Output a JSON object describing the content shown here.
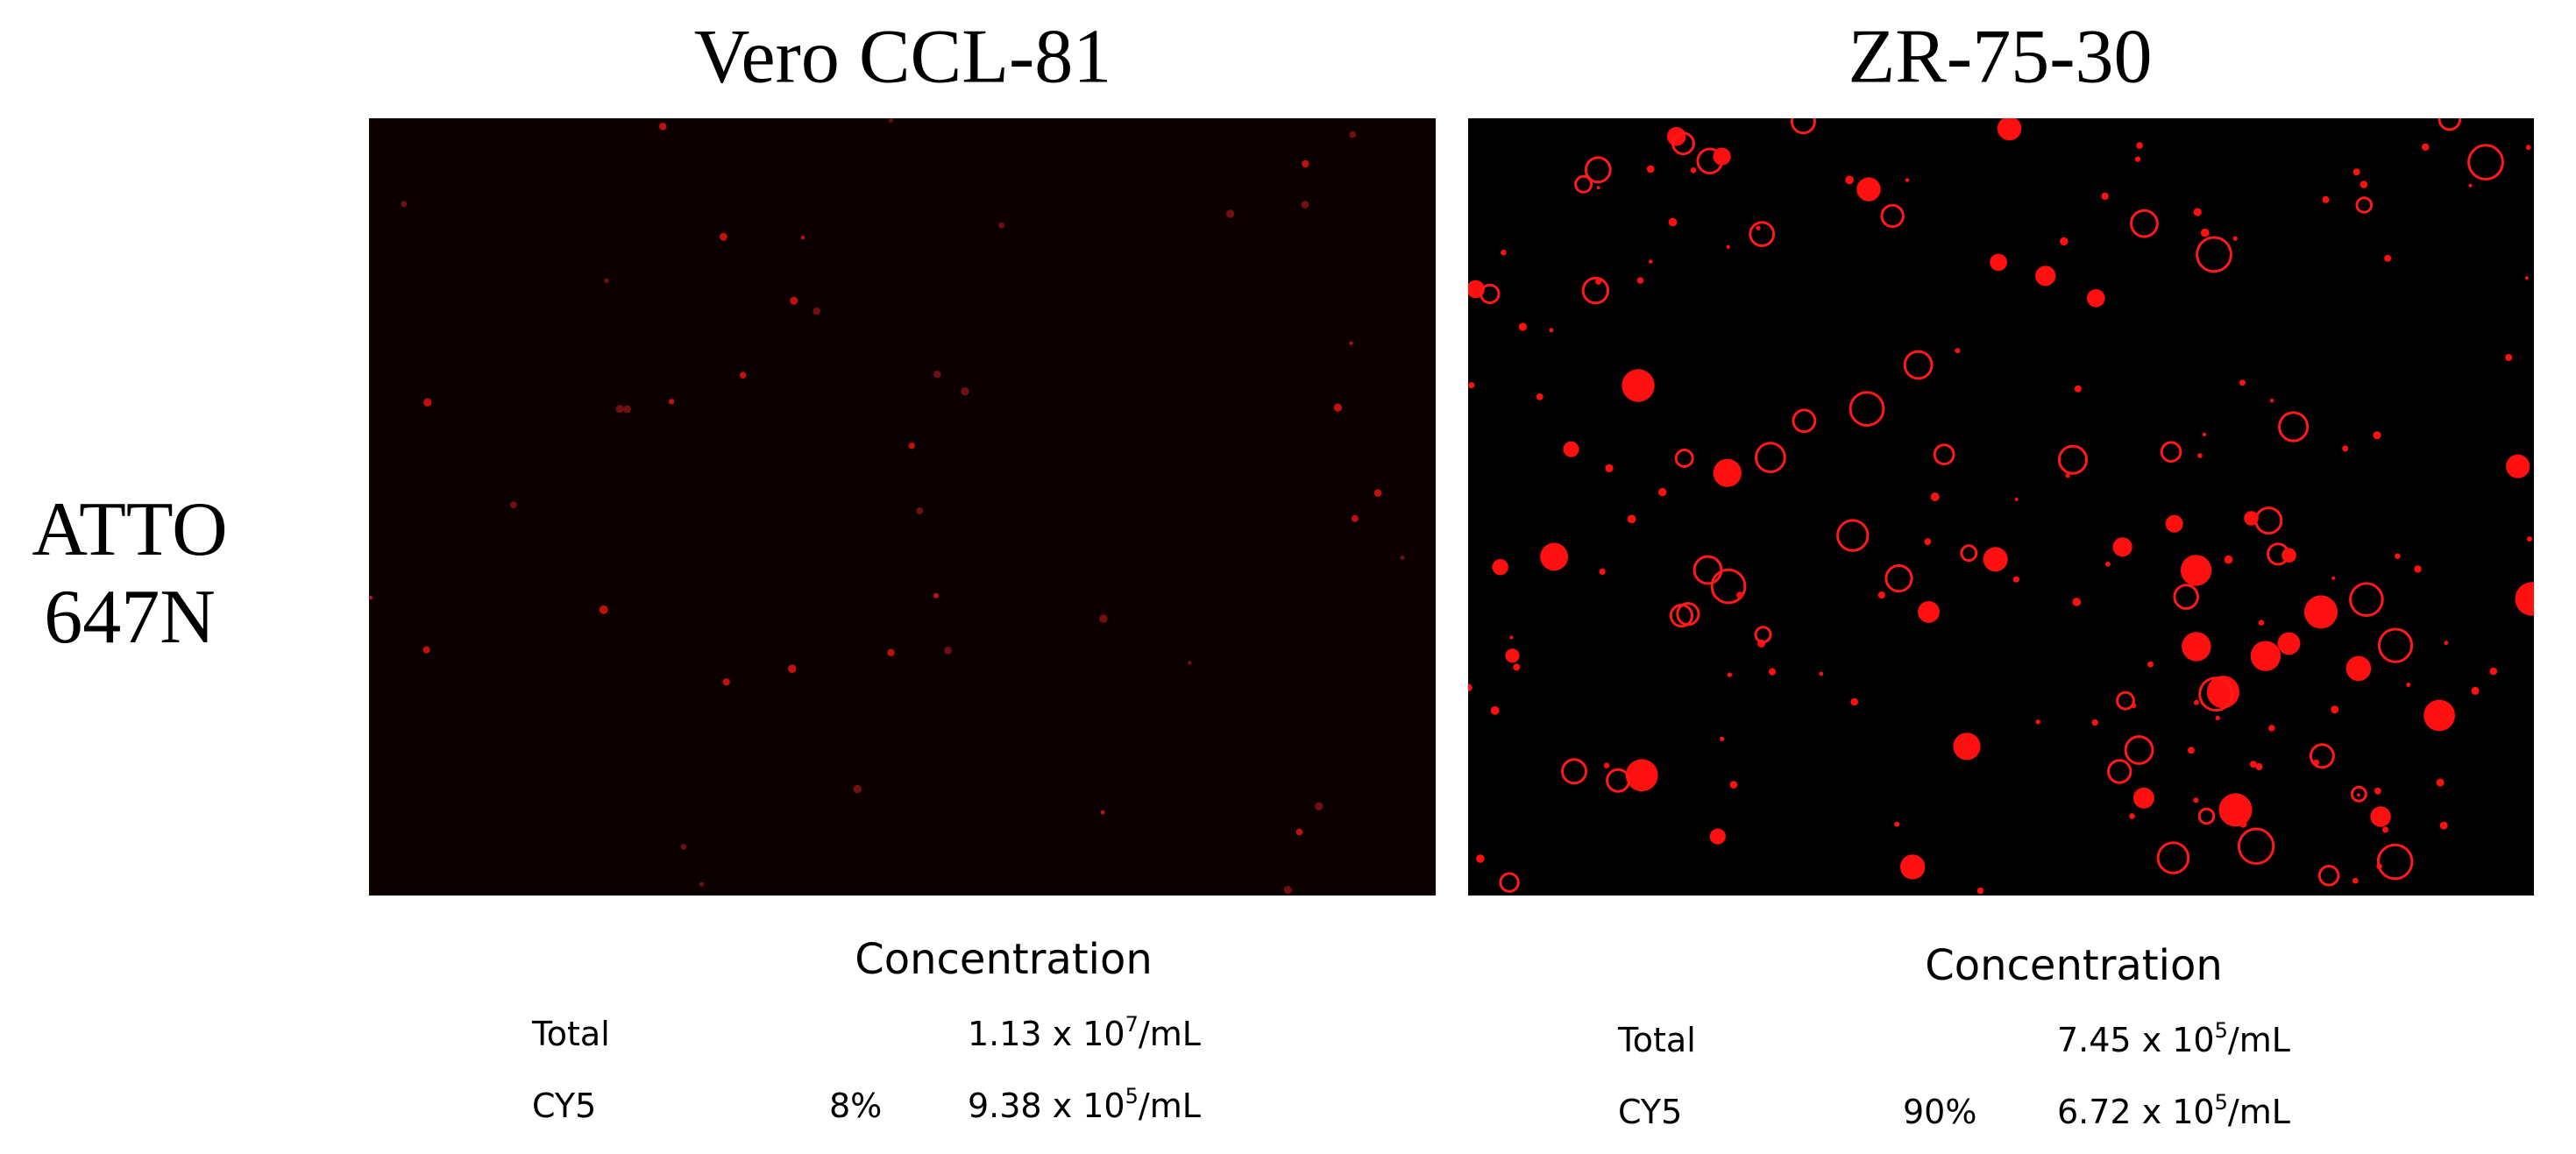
{
  "columns": [
    "Vero CCL-81",
    "ZR-75-30"
  ],
  "row_label": [
    "ATTO",
    "647N"
  ],
  "panels": [
    {
      "heading": "Concentration",
      "total": {
        "label": "Total",
        "base": "1.13 x 10",
        "exponent": "7",
        "unit": "/mL"
      },
      "cy5": {
        "label": "CY5",
        "percent": "8%",
        "base": "9.38 x 10",
        "exponent": "5",
        "unit": "/mL"
      }
    },
    {
      "heading": "Concentration",
      "total": {
        "label": "Total",
        "base": "7.45 x 10",
        "exponent": "5",
        "unit": "/mL"
      },
      "cy5": {
        "label": "CY5",
        "percent": "90%",
        "base": "6.72 x 10",
        "exponent": "5",
        "unit": "/mL"
      }
    }
  ]
}
